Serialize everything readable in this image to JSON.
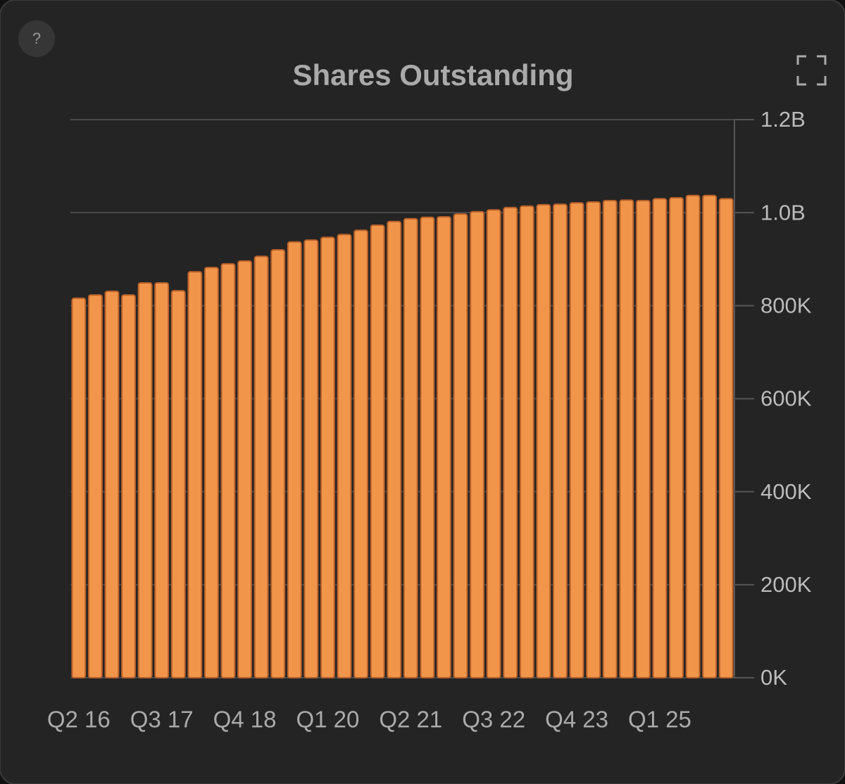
{
  "ui": {
    "help_button": "?"
  },
  "chart_data": {
    "type": "bar",
    "title": "Shares Outstanding",
    "categories": [
      "Q2 16",
      null,
      null,
      null,
      null,
      "Q3 17",
      null,
      null,
      null,
      null,
      "Q4 18",
      null,
      null,
      null,
      null,
      "Q1 20",
      null,
      null,
      null,
      null,
      "Q2 21",
      null,
      null,
      null,
      null,
      "Q3 22",
      null,
      null,
      null,
      null,
      "Q4 23",
      null,
      null,
      null,
      null,
      "Q1 25",
      null,
      null,
      null,
      null
    ],
    "values": [
      816,
      823,
      831,
      823,
      849,
      849,
      832,
      873,
      882,
      890,
      896,
      906,
      920,
      937,
      941,
      947,
      953,
      962,
      973,
      981,
      987,
      990,
      991,
      997,
      1002,
      1006,
      1011,
      1014,
      1017,
      1018,
      1021,
      1023,
      1026,
      1027,
      1026,
      1030,
      1032,
      1037,
      1037,
      1030
    ],
    "color": "#f0954a",
    "ylim": [
      0,
      1200
    ],
    "yticks": [
      {
        "value": 0,
        "label": "0K"
      },
      {
        "value": 200,
        "label": "200K"
      },
      {
        "value": 400,
        "label": "400K"
      },
      {
        "value": 600,
        "label": "600K"
      },
      {
        "value": 800,
        "label": "800K"
      },
      {
        "value": 1000,
        "label": "1.0B"
      },
      {
        "value": 1200,
        "label": "1.2B"
      }
    ],
    "grid": true
  }
}
